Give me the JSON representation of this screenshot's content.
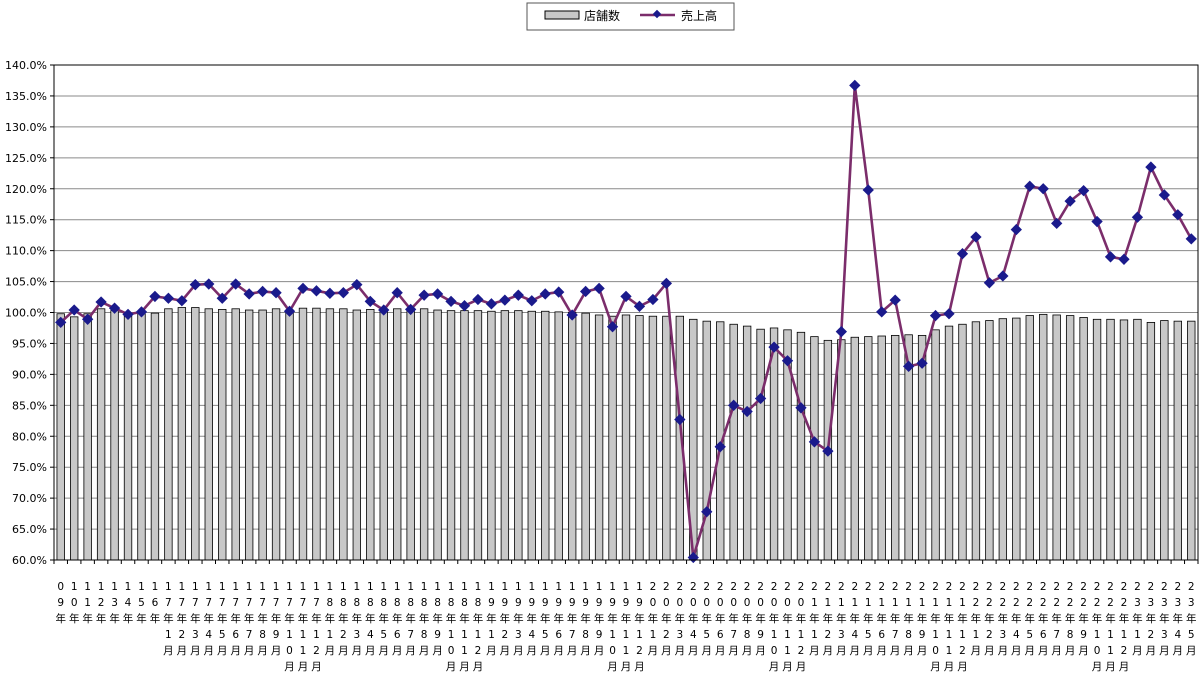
{
  "chart_data": {
    "type": "bar",
    "y_axis": {
      "min": 60,
      "max": 140,
      "step": 5,
      "suffix": "%",
      "grid": true
    },
    "legend": {
      "placement": "top-center"
    },
    "series": [
      {
        "name": "店舗数",
        "type": "bar",
        "color": "#c8c8c8",
        "values": [
          99.8,
          99.3,
          99.8,
          100.6,
          100.3,
          99.4,
          99.8,
          99.9,
          100.6,
          100.8,
          100.8,
          100.6,
          100.5,
          100.6,
          100.4,
          100.4,
          100.6,
          100.4,
          100.7,
          100.7,
          100.6,
          100.6,
          100.4,
          100.5,
          100.1,
          100.6,
          100.5,
          100.6,
          100.4,
          100.3,
          100.3,
          100.3,
          100.2,
          100.3,
          100.3,
          100.2,
          100.2,
          100.1,
          100.0,
          99.9,
          99.6,
          99.4,
          99.6,
          99.5,
          99.4,
          99.4,
          99.4,
          98.9,
          98.6,
          98.5,
          98.1,
          97.8,
          97.3,
          97.5,
          97.2,
          96.8,
          96.1,
          95.5,
          95.6,
          96.0,
          96.1,
          96.2,
          96.3,
          96.4,
          96.3,
          97.2,
          97.8,
          98.1,
          98.5,
          98.7,
          99.0,
          99.1,
          99.5,
          99.7,
          99.6,
          99.5,
          99.2,
          98.9,
          98.9,
          98.8,
          98.9,
          98.4,
          98.7,
          98.6,
          98.6
        ]
      },
      {
        "name": "売上高",
        "type": "line",
        "color": "#7b2d6b",
        "marker_color": "#1a1a8c",
        "values": [
          98.4,
          100.4,
          98.9,
          101.7,
          100.7,
          99.7,
          100.1,
          102.6,
          102.3,
          101.9,
          104.5,
          104.6,
          102.3,
          104.6,
          103.0,
          103.4,
          103.2,
          100.2,
          103.9,
          103.5,
          103.1,
          103.2,
          104.5,
          101.8,
          100.4,
          103.2,
          100.5,
          102.8,
          103.0,
          101.8,
          101.1,
          102.1,
          101.4,
          102.0,
          102.8,
          101.9,
          103.0,
          103.3,
          99.6,
          103.4,
          103.9,
          97.7,
          102.6,
          101.0,
          102.1,
          104.7,
          82.7,
          60.4,
          67.8,
          78.3,
          85.0,
          84.0,
          86.1,
          94.4,
          92.2,
          84.6,
          79.1,
          77.6,
          96.9,
          136.7,
          119.8,
          100.1,
          102.0,
          91.3,
          91.8,
          99.5,
          99.8,
          109.5,
          112.2,
          104.8,
          105.9,
          113.4,
          120.4,
          120.0,
          114.4,
          118.0,
          119.7,
          114.7,
          109.0,
          108.6,
          115.4,
          123.5,
          119.0,
          115.8,
          111.9
        ]
      }
    ],
    "categories": [
      [
        "0",
        "9",
        "年",
        "",
        ""
      ],
      [
        "1",
        "0",
        "年",
        "",
        ""
      ],
      [
        "1",
        "1",
        "年",
        "",
        ""
      ],
      [
        "1",
        "2",
        "年",
        "",
        ""
      ],
      [
        "1",
        "3",
        "年",
        "",
        ""
      ],
      [
        "1",
        "4",
        "年",
        "",
        ""
      ],
      [
        "1",
        "5",
        "年",
        "",
        ""
      ],
      [
        "1",
        "6",
        "年",
        "",
        ""
      ],
      [
        "1",
        "7",
        "年",
        "1",
        "月"
      ],
      [
        "1",
        "7",
        "年",
        "2",
        "月"
      ],
      [
        "1",
        "7",
        "年",
        "3",
        "月"
      ],
      [
        "1",
        "7",
        "年",
        "4",
        "月"
      ],
      [
        "1",
        "7",
        "年",
        "5",
        "月"
      ],
      [
        "1",
        "7",
        "年",
        "6",
        "月"
      ],
      [
        "1",
        "7",
        "年",
        "7",
        "月"
      ],
      [
        "1",
        "7",
        "年",
        "8",
        "月"
      ],
      [
        "1",
        "7",
        "年",
        "9",
        "月"
      ],
      [
        "1",
        "7",
        "年",
        "10",
        "月"
      ],
      [
        "1",
        "7",
        "年",
        "11",
        "月"
      ],
      [
        "1",
        "7",
        "年",
        "12",
        "月"
      ],
      [
        "1",
        "8",
        "年",
        "1",
        "月"
      ],
      [
        "1",
        "8",
        "年",
        "2",
        "月"
      ],
      [
        "1",
        "8",
        "年",
        "3",
        "月"
      ],
      [
        "1",
        "8",
        "年",
        "4",
        "月"
      ],
      [
        "1",
        "8",
        "年",
        "5",
        "月"
      ],
      [
        "1",
        "8",
        "年",
        "6",
        "月"
      ],
      [
        "1",
        "8",
        "年",
        "7",
        "月"
      ],
      [
        "1",
        "8",
        "年",
        "8",
        "月"
      ],
      [
        "1",
        "8",
        "年",
        "9",
        "月"
      ],
      [
        "1",
        "8",
        "年",
        "10",
        "月"
      ],
      [
        "1",
        "8",
        "年",
        "11",
        "月"
      ],
      [
        "1",
        "8",
        "年",
        "12",
        "月"
      ],
      [
        "1",
        "9",
        "年",
        "1",
        "月"
      ],
      [
        "1",
        "9",
        "年",
        "2",
        "月"
      ],
      [
        "1",
        "9",
        "年",
        "3",
        "月"
      ],
      [
        "1",
        "9",
        "年",
        "4",
        "月"
      ],
      [
        "1",
        "9",
        "年",
        "5",
        "月"
      ],
      [
        "1",
        "9",
        "年",
        "6",
        "月"
      ],
      [
        "1",
        "9",
        "年",
        "7",
        "月"
      ],
      [
        "1",
        "9",
        "年",
        "8",
        "月"
      ],
      [
        "1",
        "9",
        "年",
        "9",
        "月"
      ],
      [
        "1",
        "9",
        "年",
        "10",
        "月"
      ],
      [
        "1",
        "9",
        "年",
        "11",
        "月"
      ],
      [
        "1",
        "9",
        "年",
        "12",
        "月"
      ],
      [
        "2",
        "0",
        "年",
        "1",
        "月"
      ],
      [
        "2",
        "0",
        "年",
        "2",
        "月"
      ],
      [
        "2",
        "0",
        "年",
        "3",
        "月"
      ],
      [
        "2",
        "0",
        "年",
        "4",
        "月"
      ],
      [
        "2",
        "0",
        "年",
        "5",
        "月"
      ],
      [
        "2",
        "0",
        "年",
        "6",
        "月"
      ],
      [
        "2",
        "0",
        "年",
        "7",
        "月"
      ],
      [
        "2",
        "0",
        "年",
        "8",
        "月"
      ],
      [
        "2",
        "0",
        "年",
        "9",
        "月"
      ],
      [
        "2",
        "0",
        "年",
        "10",
        "月"
      ],
      [
        "2",
        "0",
        "年",
        "11",
        "月"
      ],
      [
        "2",
        "0",
        "年",
        "12",
        "月"
      ],
      [
        "2",
        "1",
        "年",
        "1",
        "月"
      ],
      [
        "2",
        "1",
        "年",
        "2",
        "月"
      ],
      [
        "2",
        "1",
        "年",
        "3",
        "月"
      ],
      [
        "2",
        "1",
        "年",
        "4",
        "月"
      ],
      [
        "2",
        "1",
        "年",
        "5",
        "月"
      ],
      [
        "2",
        "1",
        "年",
        "6",
        "月"
      ],
      [
        "2",
        "1",
        "年",
        "7",
        "月"
      ],
      [
        "2",
        "1",
        "年",
        "8",
        "月"
      ],
      [
        "2",
        "1",
        "年",
        "9",
        "月"
      ],
      [
        "2",
        "1",
        "年",
        "10",
        "月"
      ],
      [
        "2",
        "1",
        "年",
        "11",
        "月"
      ],
      [
        "2",
        "1",
        "年",
        "12",
        "月"
      ],
      [
        "2",
        "2",
        "年",
        "1",
        "月"
      ],
      [
        "2",
        "2",
        "年",
        "2",
        "月"
      ],
      [
        "2",
        "2",
        "年",
        "3",
        "月"
      ],
      [
        "2",
        "2",
        "年",
        "4",
        "月"
      ],
      [
        "2",
        "2",
        "年",
        "5",
        "月"
      ],
      [
        "2",
        "2",
        "年",
        "6",
        "月"
      ],
      [
        "2",
        "2",
        "年",
        "7",
        "月"
      ],
      [
        "2",
        "2",
        "年",
        "8",
        "月"
      ],
      [
        "2",
        "2",
        "年",
        "9",
        "月"
      ],
      [
        "2",
        "2",
        "年",
        "10",
        "月"
      ],
      [
        "2",
        "2",
        "年",
        "11",
        "月"
      ],
      [
        "2",
        "2",
        "年",
        "12",
        "月"
      ],
      [
        "2",
        "3",
        "年",
        "1",
        "月"
      ],
      [
        "2",
        "3",
        "年",
        "2",
        "月"
      ],
      [
        "2",
        "3",
        "年",
        "3",
        "月"
      ],
      [
        "2",
        "3",
        "年",
        "4",
        "月"
      ],
      [
        "2",
        "3",
        "年",
        "5",
        "月"
      ]
    ]
  }
}
